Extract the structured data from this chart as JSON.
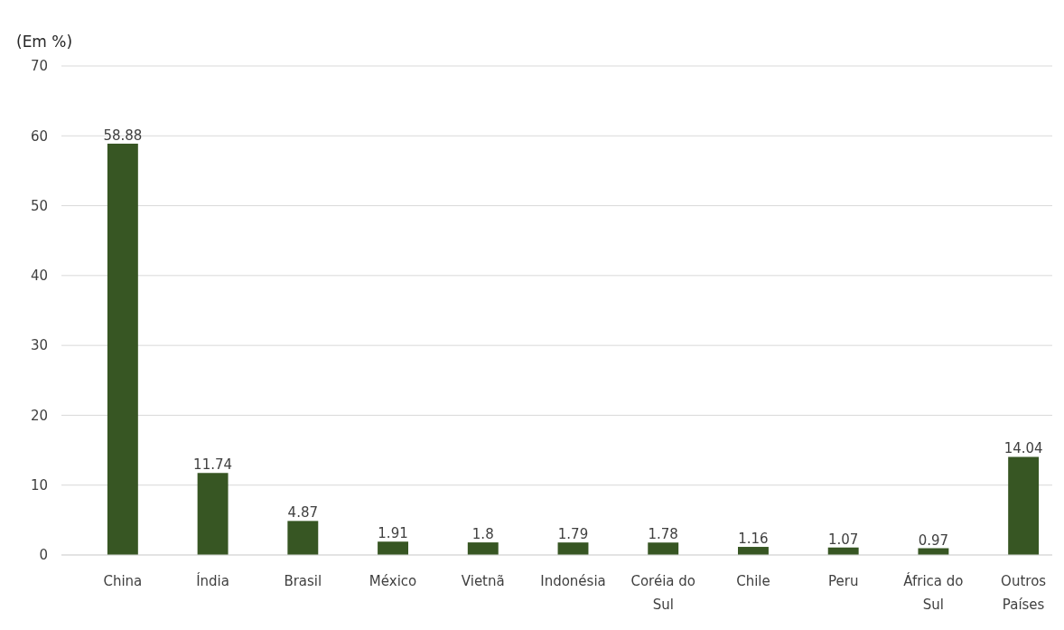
{
  "chart_data": {
    "type": "bar",
    "ylabel": "(Em %)",
    "categories": [
      "China",
      "Índia",
      "Brasil",
      "México",
      "Vietnã",
      "Indonésia",
      "Coréia do Sul",
      "Chile",
      "Peru",
      "África do Sul",
      "Outros Países"
    ],
    "values": [
      58.88,
      11.74,
      4.87,
      1.91,
      1.8,
      1.79,
      1.78,
      1.16,
      1.07,
      0.97,
      14.04
    ],
    "color": "#375623",
    "ylim": [
      0,
      70
    ],
    "yticks": [
      0,
      10,
      20,
      30,
      40,
      50,
      60,
      70
    ],
    "grid": "y",
    "data_labels": true
  }
}
